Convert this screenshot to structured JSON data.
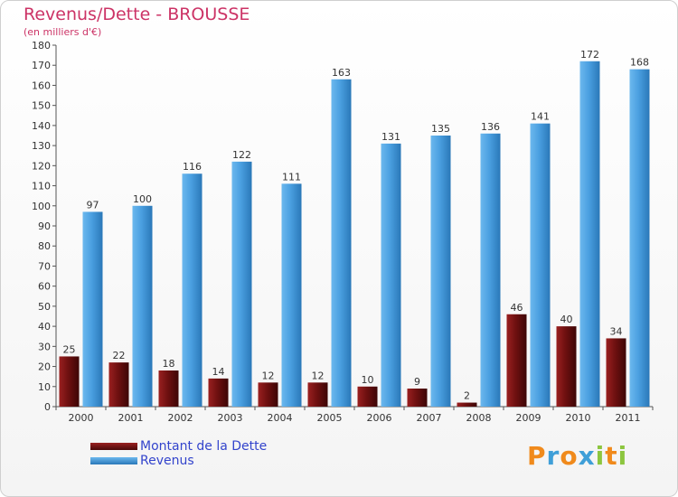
{
  "chart_data": {
    "type": "bar",
    "title": "Revenus/Dette - BROUSSE",
    "subtitle": "(en milliers d'€)",
    "categories": [
      "2000",
      "2001",
      "2002",
      "2003",
      "2004",
      "2005",
      "2006",
      "2007",
      "2008",
      "2009",
      "2010",
      "2011"
    ],
    "series": [
      {
        "name": "Montant de la Dette",
        "color": "#7a1414",
        "values": [
          25,
          22,
          18,
          14,
          12,
          12,
          10,
          9,
          2,
          46,
          40,
          34
        ]
      },
      {
        "name": "Revenus",
        "color": "#4a9fe0",
        "values": [
          97,
          100,
          116,
          122,
          111,
          163,
          131,
          135,
          136,
          141,
          172,
          168
        ]
      }
    ],
    "ylim": [
      0,
      180
    ],
    "ytick_step": 10,
    "grid": false,
    "legend": "bottom-left",
    "xlabel": "",
    "ylabel": ""
  },
  "legend": {
    "items": [
      {
        "label": "Montant de la Dette",
        "color": "#7a1414"
      },
      {
        "label": "Revenus",
        "color": "#4a9fe0"
      }
    ]
  },
  "logo": {
    "letters": [
      "P",
      "r",
      "o",
      "x",
      "i",
      "t",
      "i"
    ],
    "colors": [
      "#f08a1c",
      "#3f9fd8",
      "#f08a1c",
      "#3f9fd8",
      "#8cc63f",
      "#f08a1c",
      "#8cc63f"
    ]
  }
}
